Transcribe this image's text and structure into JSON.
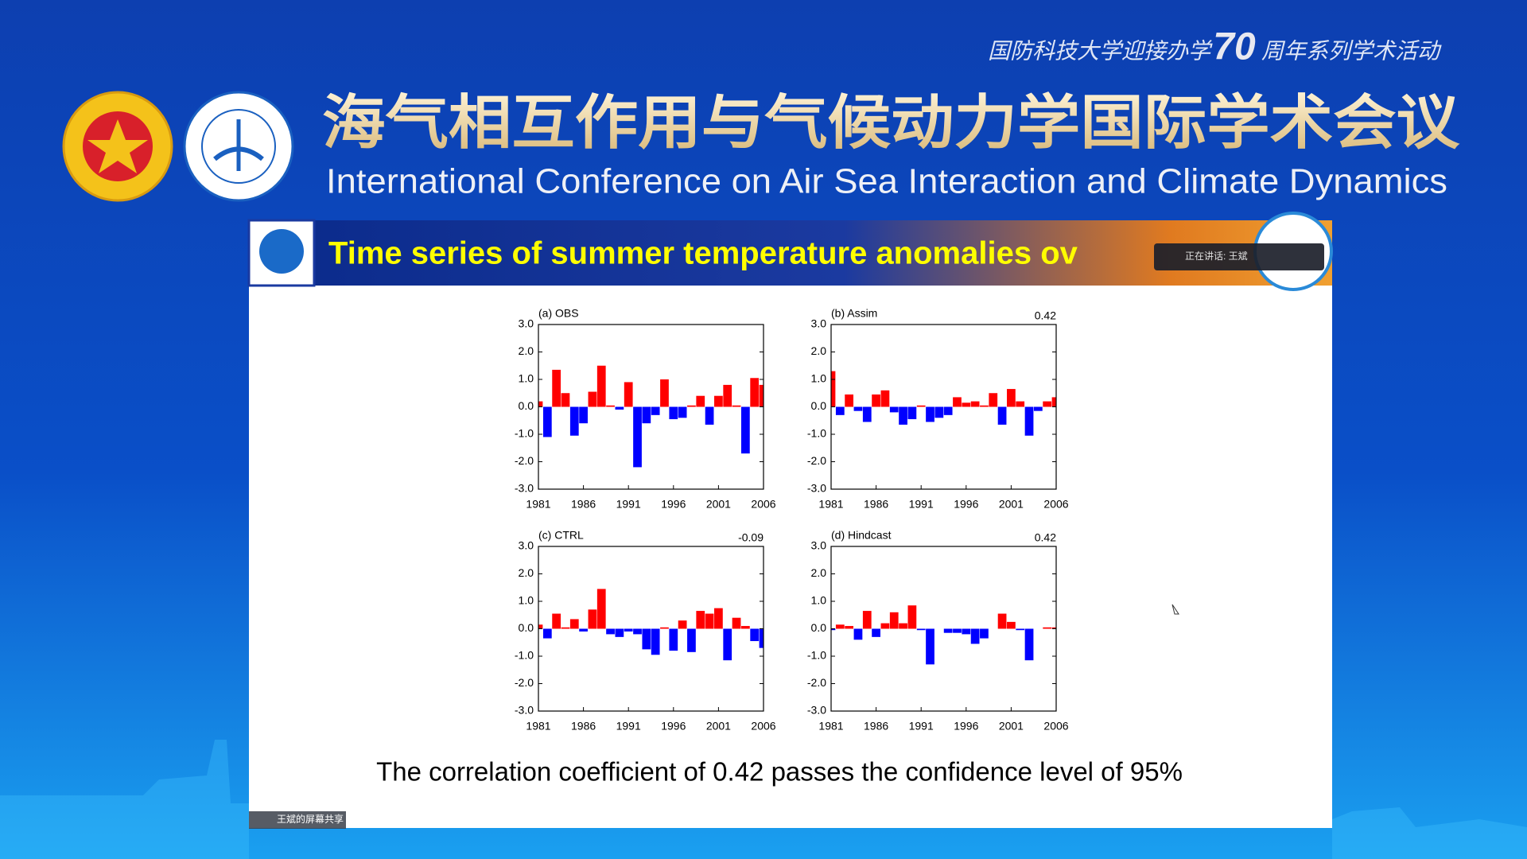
{
  "header": {
    "series_left": "国防科技大学迎接办学",
    "series_number": "70",
    "series_right": "周年系列学术活动",
    "title_cn": "海气相互作用与气候动力学国际学术会议",
    "title_en": "International Conference on Air Sea Interaction and Climate Dynamics"
  },
  "slide": {
    "title": "Time series of summer temperature anomalies ov",
    "footer": "The correlation coefficient of 0.42 passes the confidence level of 95%"
  },
  "meeting": {
    "speaking": "正在讲话: 王斌",
    "share_tag": "王斌的屏幕共享"
  },
  "chart_data": [
    {
      "type": "bar",
      "title": "(a) OBS",
      "x": [
        1981,
        1982,
        1983,
        1984,
        1985,
        1986,
        1987,
        1988,
        1989,
        1990,
        1991,
        1992,
        1993,
        1994,
        1995,
        1996,
        1997,
        1998,
        1999,
        2000,
        2001,
        2002,
        2003,
        2004,
        2005,
        2006
      ],
      "values": [
        0.2,
        -1.1,
        1.35,
        0.5,
        -1.05,
        -0.6,
        0.55,
        1.5,
        0.05,
        -0.1,
        0.9,
        -2.2,
        -0.6,
        -0.3,
        1.0,
        -0.45,
        -0.4,
        0.05,
        0.4,
        -0.65,
        0.4,
        0.8,
        0.05,
        -1.7,
        1.05,
        0.8
      ],
      "pos_color": "#ff0000",
      "neg_color": "#0000ff",
      "xlim": [
        1981,
        2006
      ],
      "xticks": [
        1981,
        1986,
        1991,
        1996,
        2001,
        2006
      ],
      "ylim": [
        -3,
        3
      ],
      "yticks": [
        {
          "value": 3,
          "label": "3.0"
        },
        {
          "value": 2,
          "label": "2.0"
        },
        {
          "value": 1,
          "label": "1.0"
        },
        {
          "value": 0,
          "label": "0.0"
        },
        {
          "value": -1,
          "label": "-1.0"
        },
        {
          "value": -2,
          "label": "-2.0"
        },
        {
          "value": -3,
          "label": "-3.0"
        }
      ]
    },
    {
      "type": "bar",
      "title": "(b) Assim",
      "annotation": "0.42",
      "x": [
        1981,
        1982,
        1983,
        1984,
        1985,
        1986,
        1987,
        1988,
        1989,
        1990,
        1991,
        1992,
        1993,
        1994,
        1995,
        1996,
        1997,
        1998,
        1999,
        2000,
        2001,
        2002,
        2003,
        2004,
        2005,
        2006
      ],
      "values": [
        1.3,
        -0.3,
        0.45,
        -0.15,
        -0.55,
        0.45,
        0.6,
        -0.2,
        -0.65,
        -0.45,
        0.05,
        -0.55,
        -0.4,
        -0.3,
        0.35,
        0.15,
        0.2,
        0.05,
        0.5,
        -0.65,
        0.65,
        0.2,
        -1.05,
        -0.15,
        0.2,
        0.35
      ],
      "pos_color": "#ff0000",
      "neg_color": "#0000ff",
      "xlim": [
        1981,
        2006
      ],
      "xticks": [
        1981,
        1986,
        1991,
        1996,
        2001,
        2006
      ],
      "ylim": [
        -3,
        3
      ],
      "yticks": [
        {
          "value": 3,
          "label": "3.0"
        },
        {
          "value": 2,
          "label": "2.0"
        },
        {
          "value": 1,
          "label": "1.0"
        },
        {
          "value": 0,
          "label": "0.0"
        },
        {
          "value": -1,
          "label": "-1.0"
        },
        {
          "value": -2,
          "label": "-2.0"
        },
        {
          "value": -3,
          "label": "-3.0"
        }
      ]
    },
    {
      "type": "bar",
      "title": "(c) CTRL",
      "annotation": "-0.09",
      "x": [
        1981,
        1982,
        1983,
        1984,
        1985,
        1986,
        1987,
        1988,
        1989,
        1990,
        1991,
        1992,
        1993,
        1994,
        1995,
        1996,
        1997,
        1998,
        1999,
        2000,
        2001,
        2002,
        2003,
        2004,
        2005,
        2006
      ],
      "values": [
        0.15,
        -0.35,
        0.55,
        0.05,
        0.35,
        -0.1,
        0.7,
        1.45,
        -0.2,
        -0.3,
        -0.1,
        -0.2,
        -0.75,
        -0.95,
        0.05,
        -0.8,
        0.3,
        -0.85,
        0.65,
        0.55,
        0.75,
        -1.15,
        0.4,
        0.1,
        -0.45,
        -0.7
      ],
      "pos_color": "#ff0000",
      "neg_color": "#0000ff",
      "xlim": [
        1981,
        2006
      ],
      "xticks": [
        1981,
        1986,
        1991,
        1996,
        2001,
        2006
      ],
      "ylim": [
        -3,
        3
      ],
      "yticks": [
        {
          "value": 3,
          "label": "3.0"
        },
        {
          "value": 2,
          "label": "2.0"
        },
        {
          "value": 1,
          "label": "1.0"
        },
        {
          "value": 0,
          "label": "0.0"
        },
        {
          "value": -1,
          "label": "-1.0"
        },
        {
          "value": -2,
          "label": "-2.0"
        },
        {
          "value": -3,
          "label": "-3.0"
        }
      ]
    },
    {
      "type": "bar",
      "title": "(d) Hindcast",
      "annotation": "0.42",
      "x": [
        1981,
        1982,
        1983,
        1984,
        1985,
        1986,
        1987,
        1988,
        1989,
        1990,
        1991,
        1992,
        1993,
        1994,
        1995,
        1996,
        1997,
        1998,
        1999,
        2000,
        2001,
        2002,
        2003,
        2004,
        2005,
        2006
      ],
      "values": [
        -0.05,
        0.15,
        0.1,
        -0.4,
        0.65,
        -0.3,
        0.2,
        0.6,
        0.2,
        0.85,
        -0.05,
        -1.3,
        0.0,
        -0.15,
        -0.15,
        -0.2,
        -0.55,
        -0.35,
        0.0,
        0.55,
        0.25,
        -0.05,
        -1.15,
        0.0,
        0.05,
        0.05
      ],
      "pos_color": "#ff0000",
      "neg_color": "#0000ff",
      "xlim": [
        1981,
        2006
      ],
      "xticks": [
        1981,
        1986,
        1991,
        1996,
        2001,
        2006
      ],
      "ylim": [
        -3,
        3
      ],
      "yticks": [
        {
          "value": 3,
          "label": "3.0"
        },
        {
          "value": 2,
          "label": "2.0"
        },
        {
          "value": 1,
          "label": "1.0"
        },
        {
          "value": 0,
          "label": "0.0"
        },
        {
          "value": -1,
          "label": "-1.0"
        },
        {
          "value": -2,
          "label": "-2.0"
        },
        {
          "value": -3,
          "label": "-3.0"
        }
      ]
    }
  ]
}
